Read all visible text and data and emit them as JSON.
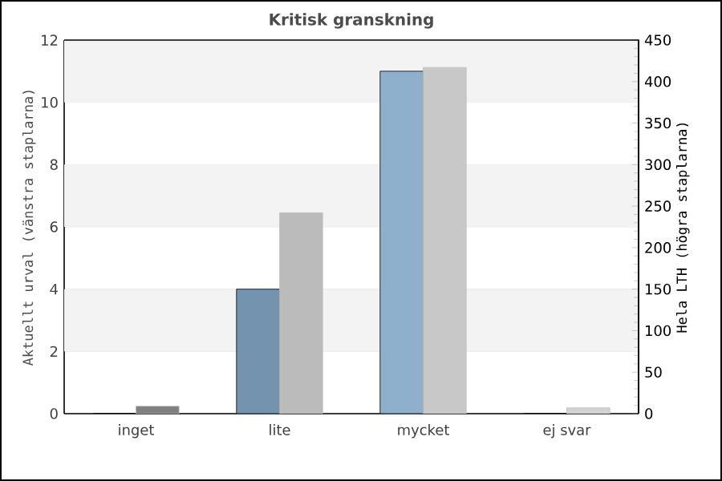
{
  "chart_data": {
    "type": "bar",
    "title": "Kritisk granskning",
    "categories": [
      "inget",
      "lite",
      "mycket",
      "ej svar"
    ],
    "ylabel": "Aktuellt urval (vänstra staplarna)",
    "y2label": "Hela LTH (högra staplarna)",
    "series": [
      {
        "colors": [
          "#7393ae",
          "#7393ae",
          "#8fb0cc",
          "#8fb0cc"
        ],
        "values": [
          0,
          4,
          11,
          0
        ]
      },
      {
        "axis": "y2",
        "colors": [
          "#808080",
          "#bbbbbb",
          "#c8c8c8",
          "#d3d3d3"
        ],
        "values": [
          9,
          242,
          417,
          7
        ]
      }
    ],
    "ylim": [
      0,
      12
    ],
    "yticks": [
      0,
      2,
      4,
      6,
      8,
      10,
      12
    ],
    "y2lim": [
      0,
      450
    ],
    "y2ticks": [
      0,
      50,
      100,
      150,
      200,
      250,
      300,
      350,
      400,
      450
    ],
    "bands": [
      {
        "axis": "y",
        "from": 2,
        "to": 4,
        "color": "#f3f3f3"
      },
      {
        "axis": "y",
        "from": 6,
        "to": 8,
        "color": "#f3f3f3"
      },
      {
        "axis": "y",
        "from": 10,
        "to": 12,
        "color": "#f3f3f3"
      }
    ],
    "grid": "y"
  }
}
